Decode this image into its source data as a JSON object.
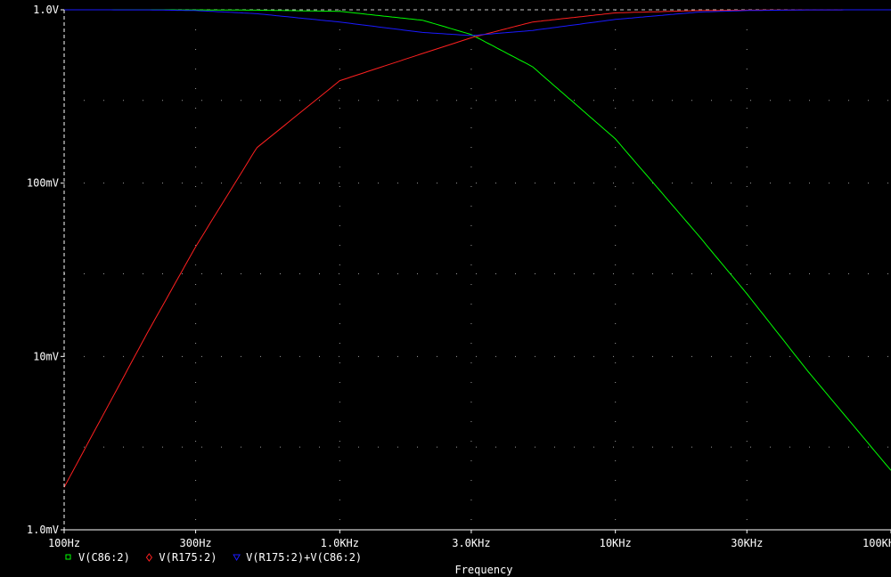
{
  "chart_data": {
    "type": "line",
    "x_scale": "log",
    "y_scale": "log",
    "xlim": [
      100,
      100000
    ],
    "ylim": [
      0.001,
      1.0
    ],
    "grid": true,
    "x_ticks": [
      {
        "value": 100,
        "label": "100Hz"
      },
      {
        "value": 300,
        "label": "300Hz"
      },
      {
        "value": 1000,
        "label": "1.0KHz"
      },
      {
        "value": 3000,
        "label": "3.0KHz"
      },
      {
        "value": 10000,
        "label": "10KHz"
      },
      {
        "value": 30000,
        "label": "30KHz"
      },
      {
        "value": 100000,
        "label": "100KHz"
      }
    ],
    "y_ticks": [
      {
        "value": 1.0,
        "label": "1.0V"
      },
      {
        "value": 0.1,
        "label": "100mV"
      },
      {
        "value": 0.01,
        "label": "10mV"
      },
      {
        "value": 0.001,
        "label": "1.0mV"
      }
    ],
    "xlabel": "Frequency",
    "series": [
      {
        "name": "V(C86:2)",
        "color": "#00ff00",
        "marker": "square",
        "x": [
          100,
          200,
          300,
          500,
          1000,
          2000,
          3000,
          5000,
          10000,
          20000,
          30000,
          50000,
          100000
        ],
        "y": [
          1.0,
          1.0,
          0.999,
          0.995,
          0.98,
          0.87,
          0.72,
          0.47,
          0.18,
          0.05,
          0.023,
          0.0082,
          0.0022
        ]
      },
      {
        "name": "V(R175:2)",
        "color": "#ff2020",
        "marker": "diamond",
        "x": [
          100,
          200,
          300,
          500,
          1000,
          2000,
          3000,
          5000,
          10000,
          20000,
          30000,
          50000,
          100000
        ],
        "y": [
          0.00176,
          0.0136,
          0.043,
          0.16,
          0.39,
          0.56,
          0.69,
          0.85,
          0.96,
          0.99,
          0.995,
          0.999,
          1.0
        ]
      },
      {
        "name": "V(R175:2)+V(C86:2)",
        "color": "#1a1aff",
        "marker": "triangle-down",
        "x": [
          100,
          200,
          300,
          500,
          1000,
          2000,
          3000,
          5000,
          10000,
          20000,
          30000,
          50000,
          100000
        ],
        "y": [
          1.0,
          0.999,
          0.99,
          0.95,
          0.85,
          0.74,
          0.71,
          0.76,
          0.88,
          0.97,
          0.99,
          0.999,
          1.0
        ]
      }
    ]
  }
}
